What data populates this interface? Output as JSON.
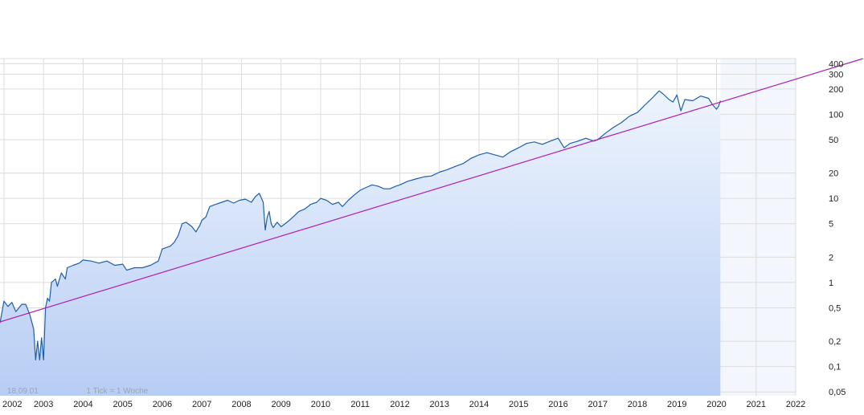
{
  "chart_data": {
    "type": "area",
    "title": "",
    "xlabel": "",
    "ylabel": "",
    "yscale": "log",
    "xlim": [
      2001.9,
      2022.0
    ],
    "ylim": [
      0.045,
      460
    ],
    "grid": true,
    "legend": "none",
    "colors": {
      "line": "#1f5fa8",
      "area_top": "#eef4fd",
      "area_bottom": "#b7cdf4",
      "trend": "#b01eb0",
      "grid": "#dcdcdc",
      "future_fill": "#eaf1fc"
    },
    "x_ticks": [
      "2002",
      "2003",
      "2004",
      "2005",
      "2006",
      "2007",
      "2008",
      "2009",
      "2010",
      "2011",
      "2012",
      "2013",
      "2014",
      "2015",
      "2016",
      "2017",
      "2018",
      "2019",
      "2020",
      "2021",
      "2022"
    ],
    "y_ticks": [
      {
        "value": 400,
        "label": "400"
      },
      {
        "value": 300,
        "label": "300"
      },
      {
        "value": 200,
        "label": "200"
      },
      {
        "value": 100,
        "label": "100"
      },
      {
        "value": 50,
        "label": "50"
      },
      {
        "value": 20,
        "label": "20"
      },
      {
        "value": 10,
        "label": "10"
      },
      {
        "value": 5,
        "label": "5"
      },
      {
        "value": 2,
        "label": "2"
      },
      {
        "value": 1,
        "label": "1"
      },
      {
        "value": 0.5,
        "label": "0,5"
      },
      {
        "value": 0.2,
        "label": "0,2"
      },
      {
        "value": 0.1,
        "label": "0,1"
      },
      {
        "value": 0.05,
        "label": "0,05"
      }
    ],
    "annotations": [
      {
        "text": "18.09.01",
        "x": 2002.0,
        "y": 0.052
      },
      {
        "text": "1 Tick = 1 Woche",
        "x": 2004.0,
        "y": 0.052
      }
    ],
    "trendline": {
      "from": [
        2001.9,
        0.34
      ],
      "to": [
        2023.7,
        460
      ]
    },
    "series": [
      {
        "points": [
          [
            2001.9,
            0.33
          ],
          [
            2002.0,
            0.6
          ],
          [
            2002.1,
            0.52
          ],
          [
            2002.2,
            0.58
          ],
          [
            2002.3,
            0.45
          ],
          [
            2002.45,
            0.55
          ],
          [
            2002.55,
            0.55
          ],
          [
            2002.65,
            0.42
          ],
          [
            2002.75,
            0.28
          ],
          [
            2002.8,
            0.12
          ],
          [
            2002.85,
            0.2
          ],
          [
            2002.9,
            0.12
          ],
          [
            2002.95,
            0.22
          ],
          [
            2003.0,
            0.12
          ],
          [
            2003.05,
            0.5
          ],
          [
            2003.1,
            0.65
          ],
          [
            2003.15,
            0.6
          ],
          [
            2003.2,
            1.0
          ],
          [
            2003.3,
            1.1
          ],
          [
            2003.35,
            0.9
          ],
          [
            2003.45,
            1.3
          ],
          [
            2003.55,
            1.1
          ],
          [
            2003.6,
            1.5
          ],
          [
            2003.75,
            1.6
          ],
          [
            2003.9,
            1.7
          ],
          [
            2004.0,
            1.85
          ],
          [
            2004.2,
            1.8
          ],
          [
            2004.4,
            1.7
          ],
          [
            2004.6,
            1.8
          ],
          [
            2004.8,
            1.6
          ],
          [
            2005.0,
            1.65
          ],
          [
            2005.1,
            1.4
          ],
          [
            2005.3,
            1.5
          ],
          [
            2005.5,
            1.5
          ],
          [
            2005.7,
            1.6
          ],
          [
            2005.9,
            1.8
          ],
          [
            2006.0,
            2.5
          ],
          [
            2006.2,
            2.7
          ],
          [
            2006.3,
            3.0
          ],
          [
            2006.4,
            3.6
          ],
          [
            2006.5,
            5.0
          ],
          [
            2006.6,
            5.2
          ],
          [
            2006.75,
            4.6
          ],
          [
            2006.85,
            4.0
          ],
          [
            2006.95,
            4.8
          ],
          [
            2007.0,
            5.5
          ],
          [
            2007.1,
            6.0
          ],
          [
            2007.2,
            8.0
          ],
          [
            2007.35,
            8.5
          ],
          [
            2007.5,
            9.0
          ],
          [
            2007.65,
            9.5
          ],
          [
            2007.8,
            8.8
          ],
          [
            2007.95,
            9.5
          ],
          [
            2008.1,
            9.8
          ],
          [
            2008.25,
            9.0
          ],
          [
            2008.35,
            10.5
          ],
          [
            2008.45,
            11.5
          ],
          [
            2008.55,
            9.0
          ],
          [
            2008.6,
            4.2
          ],
          [
            2008.65,
            6.0
          ],
          [
            2008.7,
            7.0
          ],
          [
            2008.75,
            5.0
          ],
          [
            2008.8,
            4.5
          ],
          [
            2008.9,
            5.2
          ],
          [
            2009.0,
            4.6
          ],
          [
            2009.15,
            5.2
          ],
          [
            2009.3,
            6.0
          ],
          [
            2009.45,
            7.0
          ],
          [
            2009.6,
            7.5
          ],
          [
            2009.75,
            8.5
          ],
          [
            2009.9,
            9.0
          ],
          [
            2010.0,
            10.0
          ],
          [
            2010.15,
            9.5
          ],
          [
            2010.3,
            8.5
          ],
          [
            2010.45,
            9.0
          ],
          [
            2010.55,
            8.0
          ],
          [
            2010.7,
            9.5
          ],
          [
            2010.85,
            11.0
          ],
          [
            2011.0,
            12.5
          ],
          [
            2011.15,
            13.5
          ],
          [
            2011.3,
            14.5
          ],
          [
            2011.45,
            14.0
          ],
          [
            2011.6,
            13.0
          ],
          [
            2011.75,
            13.0
          ],
          [
            2011.9,
            14.0
          ],
          [
            2012.0,
            14.5
          ],
          [
            2012.2,
            16.0
          ],
          [
            2012.4,
            17.0
          ],
          [
            2012.6,
            18.0
          ],
          [
            2012.8,
            18.5
          ],
          [
            2013.0,
            20.5
          ],
          [
            2013.2,
            22.0
          ],
          [
            2013.4,
            24.0
          ],
          [
            2013.6,
            26.0
          ],
          [
            2013.8,
            30.0
          ],
          [
            2014.0,
            33.0
          ],
          [
            2014.2,
            35.0
          ],
          [
            2014.4,
            33.0
          ],
          [
            2014.6,
            31.0
          ],
          [
            2014.8,
            36.0
          ],
          [
            2015.0,
            40.0
          ],
          [
            2015.2,
            45.0
          ],
          [
            2015.4,
            47.0
          ],
          [
            2015.6,
            44.0
          ],
          [
            2015.8,
            48.0
          ],
          [
            2016.0,
            52.0
          ],
          [
            2016.15,
            40.0
          ],
          [
            2016.3,
            45.0
          ],
          [
            2016.5,
            48.0
          ],
          [
            2016.7,
            52.0
          ],
          [
            2016.9,
            48.0
          ],
          [
            2017.0,
            50.0
          ],
          [
            2017.2,
            60.0
          ],
          [
            2017.4,
            70.0
          ],
          [
            2017.6,
            80.0
          ],
          [
            2017.8,
            95.0
          ],
          [
            2018.0,
            105.0
          ],
          [
            2018.2,
            130.0
          ],
          [
            2018.4,
            160.0
          ],
          [
            2018.55,
            190.0
          ],
          [
            2018.65,
            175.0
          ],
          [
            2018.8,
            150.0
          ],
          [
            2018.9,
            140.0
          ],
          [
            2019.0,
            170.0
          ],
          [
            2019.1,
            110.0
          ],
          [
            2019.2,
            150.0
          ],
          [
            2019.4,
            145.0
          ],
          [
            2019.6,
            165.0
          ],
          [
            2019.8,
            155.0
          ],
          [
            2019.9,
            130.0
          ],
          [
            2020.0,
            115.0
          ],
          [
            2020.05,
            125.0
          ],
          [
            2020.1,
            145.0
          ]
        ]
      }
    ]
  }
}
